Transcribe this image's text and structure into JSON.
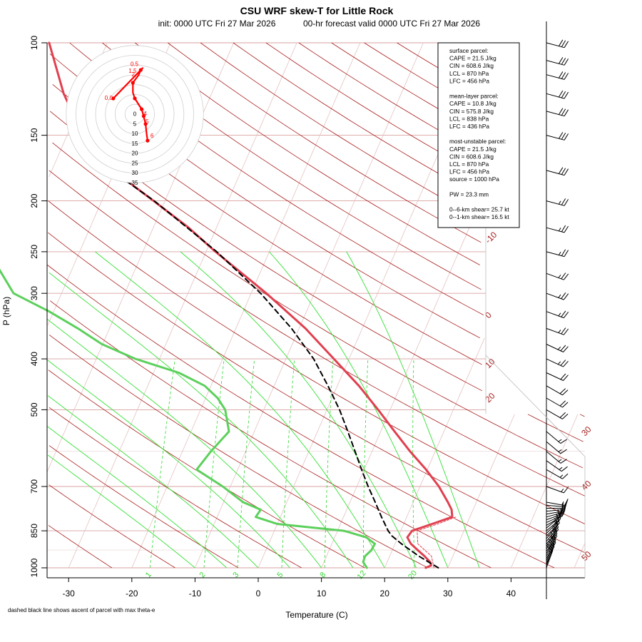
{
  "chart_data": {
    "type": "skew-T log-P diagram",
    "title": "CSU WRF skew-T for Little Rock",
    "subtitle_init": "init: 0000 UTC Fri 27 Mar 2026",
    "subtitle_valid": "00-hr forecast valid 0000 UTC Fri 27 Mar 2026",
    "xlabel": "Temperature (C)",
    "ylabel": "P (hPa)",
    "footnote": "dashed black line shows ascent of parcel with max theta-e",
    "x_ticks": [
      -30,
      -20,
      -10,
      0,
      10,
      20,
      30,
      40
    ],
    "y_ticks": [
      100,
      150,
      200,
      250,
      300,
      400,
      500,
      700,
      850,
      1000
    ],
    "xlim": [
      -33,
      45
    ],
    "ylim_hpa": [
      1000,
      100
    ],
    "grid": true,
    "isotherm_labels": [
      "-10",
      "0",
      "10",
      "20",
      "30",
      "40",
      "50"
    ],
    "mixing_ratio_labels": [
      "1",
      "2",
      "3",
      "5",
      "8",
      "12",
      "20"
    ],
    "colors": {
      "temperature": "#e0404f",
      "dewpoint": "#5cd05c",
      "parcel": "#000000",
      "dry_adiabat": "#a81c1c",
      "moist_adiabat": "#33e033",
      "mixing_ratio": "#33d633",
      "isobar": "#d9a0a0",
      "isotherm": "#e6c0c0",
      "hodograph": "#ff0000"
    },
    "temperature": {
      "name": "Temperature",
      "p": [
        1000,
        990,
        975,
        950,
        925,
        900,
        875,
        850,
        825,
        800,
        775,
        750,
        700,
        650,
        600,
        550,
        500,
        450,
        400,
        350,
        300,
        250,
        225,
        200,
        175,
        160,
        150,
        125,
        100
      ],
      "t": [
        26.5,
        27.2,
        26.8,
        25.5,
        24.0,
        22.5,
        21.5,
        21.8,
        24.5,
        27.2,
        26.6,
        25.5,
        23.0,
        19.8,
        16.0,
        12.2,
        8.1,
        3.4,
        -2.4,
        -9.0,
        -17.6,
        -28.5,
        -34.4,
        -41.8,
        -50.3,
        -56.6,
        -57.5,
        -63.4,
        -69.2
      ]
    },
    "dewpoint": {
      "name": "Dewpoint",
      "p": [
        1000,
        990,
        975,
        950,
        925,
        900,
        875,
        850,
        825,
        800,
        775,
        750,
        700,
        650,
        600,
        550,
        500,
        475,
        450,
        425,
        400,
        375,
        350,
        325,
        300,
        250,
        200,
        175
      ],
      "td": [
        17.2,
        16.8,
        16.2,
        16.1,
        16.7,
        16.8,
        15.0,
        11.0,
        0.0,
        -3.9,
        -3.6,
        -6.9,
        -11.2,
        -16.5,
        -15.5,
        -14.0,
        -16.1,
        -18.1,
        -21.0,
        -26.0,
        -33.8,
        -40.1,
        -45.0,
        -50.7,
        -57.6,
        -64.4,
        -71.2,
        -77.3
      ]
    },
    "parcel": {
      "name": "Parcel (max theta-e)",
      "p": [
        1000,
        950,
        900,
        870,
        850,
        800,
        750,
        700,
        650,
        600,
        550,
        500,
        450,
        400,
        350,
        300,
        250,
        200,
        175
      ],
      "t": [
        28.5,
        24.6,
        21.0,
        19.0,
        18.0,
        16.0,
        14.0,
        11.8,
        9.6,
        7.3,
        4.8,
        2.0,
        -1.5,
        -5.6,
        -11.2,
        -18.5,
        -28.3,
        -41.7,
        -50.6
      ]
    },
    "parcel_info": [
      "surface parcel:",
      "CAPE = 21.5 J/kg",
      "CIN = 608.6 J/kg",
      "LCL = 870 hPa",
      "LFC = 456 hPa",
      "",
      "mean-layer parcel:",
      "CAPE = 10.8 J/kg",
      "CIN = 575.8 J/kg",
      "LCL = 838 hPa",
      "LFC = 436 hPa",
      "",
      "most-unstable parcel:",
      "CAPE = 21.5 J/kg",
      "CIN = 608.6 J/kg",
      "LCL = 870 hPa",
      "LFC = 456 hPa",
      "source = 1000 hPa",
      "",
      "PW =  23.3 mm",
      "",
      "0--6-km shear= 25.7 kt",
      "0--1-km shear= 16.5 kt"
    ],
    "hodograph": {
      "ring_labels": [
        "0",
        "5",
        "10",
        "15",
        "20",
        "25",
        "30",
        "35"
      ],
      "ring_step_kt": 5,
      "height_labels": [
        "0.0",
        "0.5",
        "1.5",
        "2",
        "4",
        "5",
        "6"
      ],
      "u": [
        -11.0,
        4.0,
        3.0,
        2.0,
        -1.0,
        -1.0,
        0.0,
        3.5,
        4.5,
        5.5,
        6.0,
        6.5
      ],
      "v": [
        8.0,
        23.5,
        22.5,
        20.0,
        16.0,
        11.0,
        8.0,
        2.5,
        -1.0,
        -5.0,
        -10.0,
        -13.5
      ]
    },
    "wind_barbs": {
      "p": [
        1000,
        990,
        980,
        970,
        960,
        950,
        940,
        930,
        920,
        910,
        900,
        890,
        880,
        870,
        860,
        850,
        840,
        830,
        820,
        810,
        800,
        790,
        780,
        770,
        760,
        750,
        700,
        650,
        625,
        600,
        575,
        550,
        500,
        475,
        450,
        425,
        400,
        375,
        350,
        325,
        300,
        275,
        250,
        225,
        200,
        175,
        150,
        135,
        125,
        115,
        108,
        100
      ],
      "dir_deg": [
        200,
        200,
        205,
        205,
        210,
        210,
        210,
        215,
        215,
        215,
        220,
        220,
        220,
        225,
        225,
        230,
        230,
        240,
        245,
        250,
        255,
        260,
        265,
        270,
        275,
        280,
        290,
        300,
        305,
        310,
        310,
        310,
        300,
        300,
        300,
        295,
        295,
        295,
        290,
        290,
        290,
        290,
        285,
        285,
        285,
        285,
        285,
        285,
        285,
        285,
        285,
        285
      ],
      "speed_kt": [
        15,
        15,
        15,
        15,
        15,
        15,
        15,
        15,
        15,
        15,
        15,
        15,
        15,
        15,
        15,
        15,
        15,
        15,
        15,
        15,
        15,
        15,
        15,
        15,
        15,
        15,
        15,
        15,
        15,
        15,
        15,
        15,
        20,
        20,
        20,
        20,
        25,
        25,
        25,
        25,
        25,
        25,
        25,
        25,
        25,
        30,
        30,
        30,
        30,
        30,
        30,
        30
      ]
    }
  }
}
